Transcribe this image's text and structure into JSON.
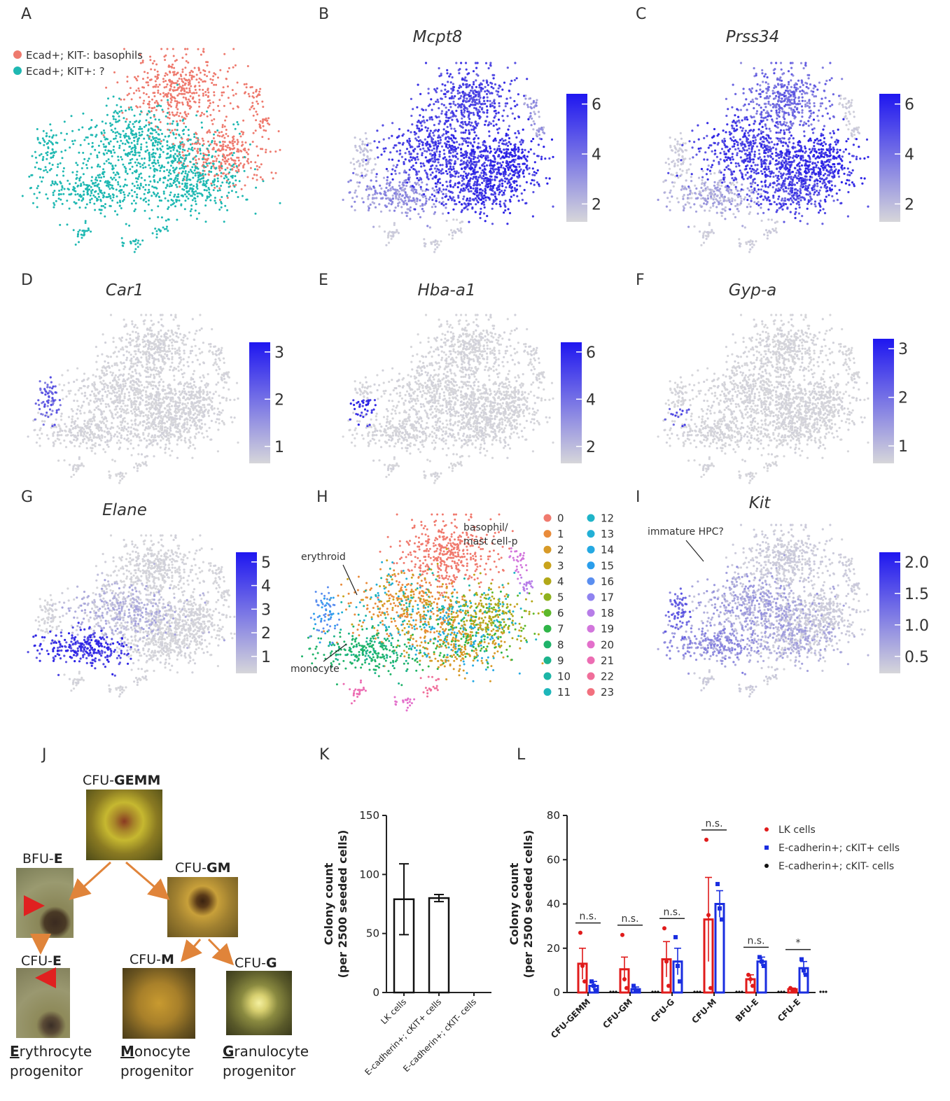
{
  "panels": {
    "A": {
      "label": "A",
      "legend": [
        {
          "text": "Ecad+; KIT-: basophils",
          "color": "#ee7a6e"
        },
        {
          "text": "Ecad+; KIT+:     ?",
          "color": "#1fb8b2"
        }
      ]
    },
    "B": {
      "label": "B",
      "gene": "Mcpt8",
      "ticks": [
        "6",
        "4",
        "2"
      ]
    },
    "C": {
      "label": "C",
      "gene": "Prss34",
      "ticks": [
        "6",
        "4",
        "2"
      ]
    },
    "D": {
      "label": "D",
      "gene": "Car1",
      "ticks": [
        "3",
        "2",
        "1"
      ]
    },
    "E": {
      "label": "E",
      "gene": "Hba-a1",
      "ticks": [
        "6",
        "4",
        "2"
      ]
    },
    "F": {
      "label": "F",
      "gene": "Gyp-a",
      "ticks": [
        "3",
        "2",
        "1"
      ]
    },
    "G": {
      "label": "G",
      "gene": "Elane",
      "ticks": [
        "5",
        "4",
        "3",
        "2",
        "1"
      ]
    },
    "H": {
      "label": "H",
      "annotations": {
        "basophil": "basophil/",
        "mast": "mast cell-p",
        "erythroid": "erythroid",
        "monocyte": "monocyte"
      },
      "clusters": [
        {
          "id": "0",
          "color": "#f07a6e"
        },
        {
          "id": "1",
          "color": "#e98b3a"
        },
        {
          "id": "2",
          "color": "#d89a28"
        },
        {
          "id": "3",
          "color": "#c9a31c"
        },
        {
          "id": "4",
          "color": "#b2a818"
        },
        {
          "id": "5",
          "color": "#8fb21e"
        },
        {
          "id": "6",
          "color": "#5db82a"
        },
        {
          "id": "7",
          "color": "#2fb548"
        },
        {
          "id": "8",
          "color": "#1fb36a"
        },
        {
          "id": "9",
          "color": "#1cb38c"
        },
        {
          "id": "10",
          "color": "#1cb5a6"
        },
        {
          "id": "11",
          "color": "#1db6ba"
        },
        {
          "id": "12",
          "color": "#1fb4c8"
        },
        {
          "id": "13",
          "color": "#22b0d6"
        },
        {
          "id": "14",
          "color": "#25a9e2"
        },
        {
          "id": "15",
          "color": "#2a9eec"
        },
        {
          "id": "16",
          "color": "#5a8ef0"
        },
        {
          "id": "17",
          "color": "#8f83f0"
        },
        {
          "id": "18",
          "color": "#b77de8"
        },
        {
          "id": "19",
          "color": "#d276dc"
        },
        {
          "id": "20",
          "color": "#e36fcb"
        },
        {
          "id": "21",
          "color": "#ec6db3"
        },
        {
          "id": "22",
          "color": "#f06e9a"
        },
        {
          "id": "23",
          "color": "#f2707e"
        }
      ]
    },
    "I": {
      "label": "I",
      "gene": "Kit",
      "annotation": "immature HPC?",
      "ticks": [
        "2.0",
        "1.5",
        "1.0",
        "0.5"
      ]
    },
    "J": {
      "label": "J",
      "titles": {
        "gemm_pre": "CFU-",
        "gemm_b": "GEMM",
        "bfue_pre": "BFU-",
        "bfue_b": "E",
        "cfugm_pre": "CFU-",
        "cfugm_b": "GM",
        "cfue_pre": "CFU-",
        "cfue_b": "E",
        "cfum_pre": "CFU-",
        "cfum_b": "M",
        "cfug_pre": "CFU-",
        "cfug_b": "G"
      },
      "progenitors": {
        "ery_first": "E",
        "ery_rest": "rythrocyte",
        "mono_first": "M",
        "mono_rest": "onocyte",
        "gran_first": "G",
        "gran_rest": "ranulocyte",
        "word": "progenitor"
      }
    },
    "K": {
      "label": "K"
    },
    "L": {
      "label": "L"
    }
  },
  "chart_data": [
    {
      "type": "bar",
      "panel": "K",
      "categories": [
        "LK cells",
        "E-cadherin+; cKIT+ cells",
        "E-cadherin+; cKIT- cells"
      ],
      "values": [
        79,
        80,
        0
      ],
      "errors": [
        30,
        3,
        0
      ],
      "ylabel": "Colony count\n(per 2500 seeded cells)",
      "ylim": [
        0,
        150
      ],
      "yticks": [
        "0",
        "50",
        "100",
        "150"
      ]
    },
    {
      "type": "bar",
      "panel": "L",
      "categories": [
        "CFU-GEMM",
        "CFU-GM",
        "CFU-G",
        "CFU-M",
        "BFU-E",
        "CFU-E"
      ],
      "series": [
        {
          "name": "LK cells",
          "color": "#e01b1b",
          "values": [
            13,
            10.5,
            15,
            33,
            6,
            1.5
          ],
          "errors": [
            7,
            5.5,
            8,
            19,
            2,
            0.5
          ],
          "points": [
            [
              27,
              12,
              5
            ],
            [
              26,
              6,
              2
            ],
            [
              29,
              14,
              3
            ],
            [
              69,
              35,
              2
            ],
            [
              8,
              6,
              3
            ],
            [
              2,
              1,
              1
            ]
          ]
        },
        {
          "name": "E-cadherin+; cKIT+ cells",
          "color": "#1a2ee0",
          "values": [
            3,
            1.5,
            14,
            40,
            14,
            11
          ],
          "errors": [
            2,
            1,
            6,
            6,
            2,
            3
          ],
          "points": [
            [
              5,
              3,
              1
            ],
            [
              3,
              1,
              0.5
            ],
            [
              25,
              12,
              5
            ],
            [
              49,
              38,
              33
            ],
            [
              16,
              14,
              12
            ],
            [
              15,
              10,
              8
            ]
          ]
        },
        {
          "name": "E-cadherin+; cKIT- cells",
          "color": "#111111",
          "values": [
            0,
            0,
            0,
            0,
            0,
            0
          ],
          "errors": [
            0,
            0,
            0,
            0,
            0,
            0
          ],
          "points": [
            [
              0,
              0,
              0
            ],
            [
              0,
              0,
              0
            ],
            [
              0,
              0,
              0
            ],
            [
              0,
              0,
              0
            ],
            [
              0,
              0,
              0
            ],
            [
              0,
              0,
              0
            ]
          ]
        }
      ],
      "significance": [
        "n.s.",
        "n.s.",
        "n.s.",
        "n.s.",
        "n.s.",
        "*"
      ],
      "ylabel": "Colony count\n(per 2500 seeded cells)",
      "ylim": [
        0,
        80
      ],
      "yticks": [
        "0",
        "20",
        "40",
        "60",
        "80"
      ]
    }
  ]
}
